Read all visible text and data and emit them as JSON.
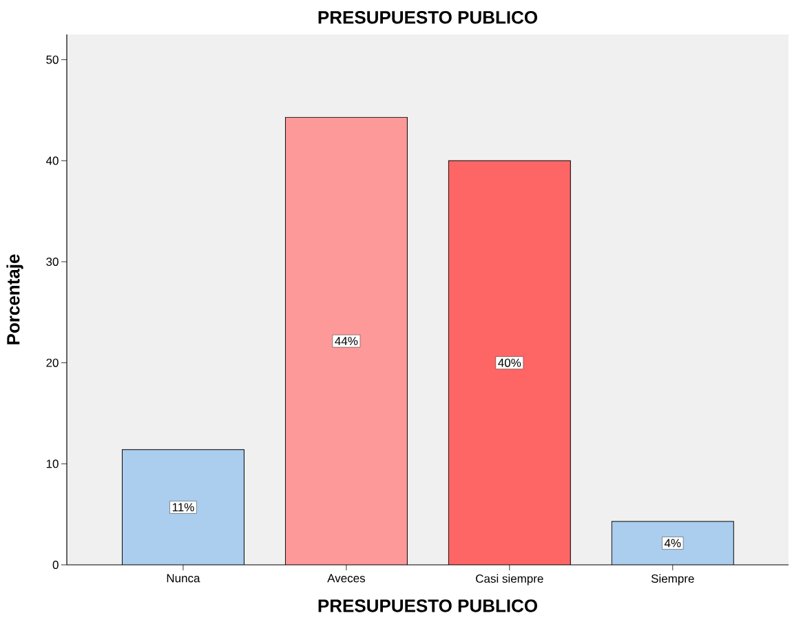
{
  "chart_data": {
    "type": "bar",
    "title": "PRESUPUESTO PUBLICO",
    "xlabel": "PRESUPUESTO PUBLICO",
    "ylabel": "Porcentaje",
    "categories": [
      "Nunca",
      "Aveces",
      "Casi siempre",
      "Siempre"
    ],
    "values": [
      11.4,
      44.3,
      40.0,
      4.3
    ],
    "colors": [
      "#abcdee",
      "#fd9999",
      "#fe6565",
      "#abcdee"
    ],
    "value_labels": [
      "11%",
      "44%",
      "40%",
      "4%"
    ],
    "ylim": [
      0,
      52.5
    ],
    "yticks": [
      0,
      10,
      20,
      30,
      40,
      50
    ],
    "grid": false
  }
}
